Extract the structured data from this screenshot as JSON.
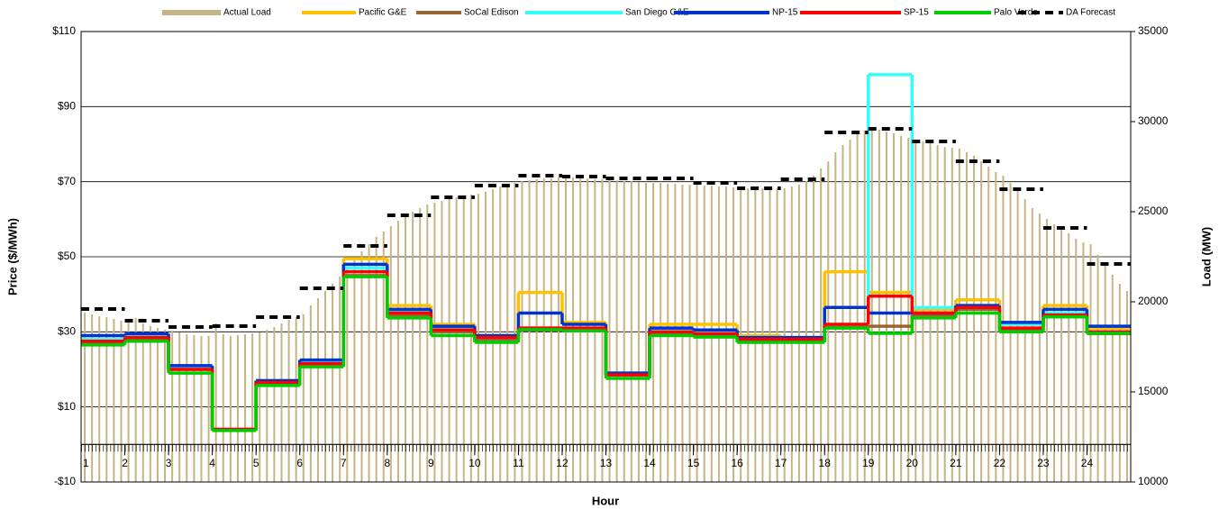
{
  "chart_data": {
    "type": "step-combo",
    "x_label": "Hour",
    "y_label": "Price ($/MWh)",
    "y2_label": "Load (MW)",
    "xlim": [
      1,
      25
    ],
    "xticks": [
      1,
      2,
      3,
      4,
      5,
      6,
      7,
      8,
      9,
      10,
      11,
      12,
      13,
      14,
      15,
      16,
      17,
      18,
      19,
      20,
      21,
      22,
      23,
      24
    ],
    "ylim": [
      -10,
      110
    ],
    "yticks": [
      {
        "value": -10,
        "label": "-$10"
      },
      {
        "value": 10,
        "label": "$10"
      },
      {
        "value": 30,
        "label": "$30"
      },
      {
        "value": 50,
        "label": "$50"
      },
      {
        "value": 70,
        "label": "$70"
      },
      {
        "value": 90,
        "label": "$90"
      },
      {
        "value": 110,
        "label": "$110"
      }
    ],
    "y2lim": [
      10000,
      35000
    ],
    "y2ticks": [
      10000,
      15000,
      20000,
      25000,
      30000,
      35000
    ],
    "grid": true,
    "legend": "top",
    "series": [
      {
        "name": "Actual Load",
        "color": "#c8b482",
        "style": "bar",
        "axis": "y2",
        "values": [
          19400,
          19300,
          19200,
          19150,
          19050,
          18950,
          18900,
          19100,
          18800,
          18650,
          18550,
          18450,
          18400,
          18300,
          18200,
          18150,
          18100,
          18100,
          18800,
          18200,
          18100,
          18150,
          18200,
          18250,
          18300,
          18450,
          18600,
          18800,
          19000,
          19150,
          19300,
          19800,
          20200,
          20600,
          21000,
          21400,
          21800,
          22300,
          22800,
          23200,
          23600,
          23900,
          24200,
          24500,
          24800,
          25000,
          25200,
          25400,
          25500,
          25600,
          25700,
          25800,
          25900,
          25950,
          26000,
          26100,
          26250,
          26400,
          26500,
          26600,
          26700,
          26750,
          26800,
          26850,
          26850,
          26900,
          26900,
          26900,
          26850,
          26850,
          26800,
          26800,
          26800,
          26750,
          26700,
          26700,
          26650,
          26600,
          26600,
          26600,
          26550,
          26550,
          26500,
          26500,
          26500,
          26450,
          26450,
          26400,
          26400,
          26350,
          26350,
          26300,
          26300,
          26300,
          26300,
          26300,
          26300,
          26400,
          26500,
          26700,
          27000,
          27400,
          27800,
          28300,
          28700,
          29000,
          29300,
          29500,
          29600,
          29550,
          29450,
          29350,
          29200,
          29100,
          29000,
          28900,
          28800,
          28700,
          28600,
          28550,
          28500,
          28300,
          28100,
          27800,
          27500,
          27200,
          27000,
          26600,
          26200,
          25700,
          25200,
          24900,
          24600,
          24300,
          24000,
          23800,
          23500,
          23300,
          23200,
          22600,
          22000,
          21500,
          21000,
          20600
        ]
      },
      {
        "name": "Pacific G&E",
        "color": "#ffc000",
        "style": "step",
        "values": [
          28,
          29,
          20.5,
          4,
          17,
          22,
          49.5,
          37,
          32,
          29,
          40.5,
          32.5,
          19,
          32,
          32,
          29,
          28.5,
          46,
          40.5,
          36,
          38.5,
          32,
          37,
          31
        ]
      },
      {
        "name": "SoCal Edison",
        "color": "#996633",
        "style": "step",
        "values": [
          27,
          28,
          20,
          4,
          16,
          21.5,
          45,
          34.5,
          30,
          28,
          30.5,
          30.5,
          18.5,
          29.5,
          29,
          28,
          27.5,
          31.5,
          31.5,
          34.5,
          36,
          30.5,
          34,
          29.5
        ]
      },
      {
        "name": "San Diego G&E",
        "color": "#33ffff",
        "style": "step",
        "values": [
          28,
          29,
          20.5,
          4,
          16.5,
          22,
          47,
          35.5,
          31,
          28.5,
          31,
          31,
          18.5,
          30.5,
          30,
          28.5,
          28,
          32,
          98.5,
          36.5,
          37,
          32,
          35,
          31.5
        ]
      },
      {
        "name": "NP-15",
        "color": "#0033cc",
        "style": "step",
        "values": [
          29,
          29.5,
          21,
          4,
          17,
          22.5,
          48,
          36,
          31.5,
          29,
          35,
          32,
          19,
          31,
          30.5,
          28.5,
          28.5,
          36.5,
          35,
          35,
          37,
          32.5,
          36,
          31.5
        ]
      },
      {
        "name": "SP-15",
        "color": "#ff0000",
        "style": "step",
        "values": [
          27.5,
          28.5,
          20,
          4,
          16.5,
          21.5,
          46,
          35,
          30.5,
          28.5,
          31,
          31,
          18.5,
          30,
          29.5,
          28,
          28,
          32,
          39.5,
          35,
          36.5,
          31,
          34.5,
          30
        ]
      },
      {
        "name": "Palo Verde",
        "color": "#00cc00",
        "style": "step",
        "values": [
          26.5,
          27.5,
          19,
          3.7,
          15.7,
          20.7,
          44.7,
          33.7,
          29,
          27.2,
          30.6,
          30.3,
          17.6,
          29,
          28.6,
          27.2,
          27.2,
          31,
          29.6,
          33.7,
          35,
          30,
          34,
          29.6
        ]
      },
      {
        "name": "DA Forecast",
        "color": "#000000",
        "style": "dashed-step",
        "axis": "y2",
        "values": [
          19600,
          18950,
          18600,
          18650,
          19150,
          20750,
          23100,
          24800,
          25800,
          26450,
          27000,
          26950,
          26850,
          26850,
          26600,
          26300,
          26800,
          29400,
          29600,
          28900,
          27800,
          26250,
          24100,
          22100
        ]
      }
    ]
  }
}
